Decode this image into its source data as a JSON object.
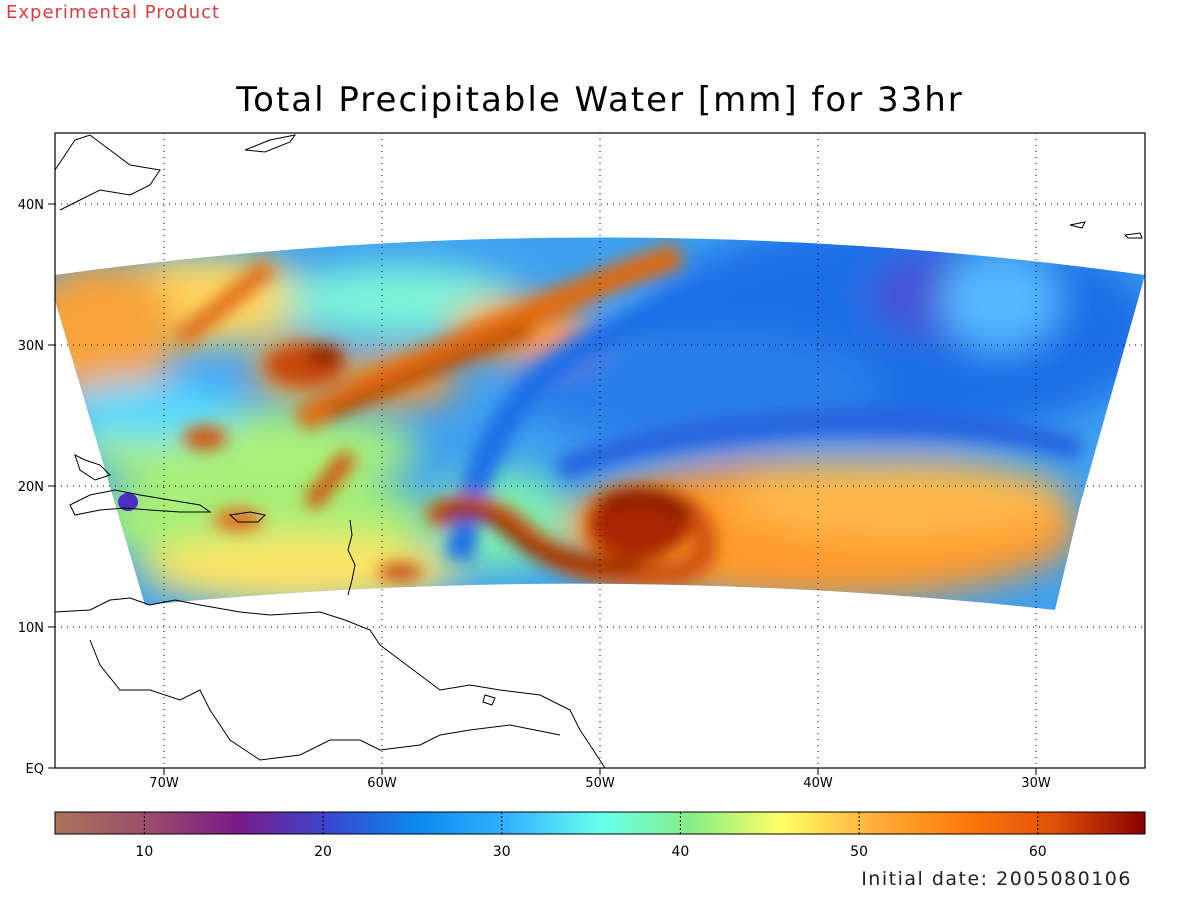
{
  "header": {
    "product_label": "Experimental Product",
    "title": "Total Precipitable Water [mm] for 33hr"
  },
  "footer": {
    "initial_date": "Initial date: 2005080106"
  },
  "map": {
    "lat_labels": [
      "40N",
      "30N",
      "20N",
      "10N",
      "EQ"
    ],
    "lon_labels": [
      "70W",
      "60W",
      "50W",
      "40W",
      "30W"
    ],
    "lat_values": [
      40,
      30,
      20,
      10,
      0
    ],
    "lon_values": [
      -70,
      -60,
      -50,
      -40,
      -30
    ],
    "lon_range": [
      -75,
      -25
    ],
    "lat_range": [
      0,
      45
    ],
    "grid": "dotted",
    "coastline_color": "#000000"
  },
  "colorbar": {
    "tick_labels": [
      "10",
      "20",
      "30",
      "40",
      "50",
      "60"
    ],
    "tick_values": [
      10,
      20,
      30,
      40,
      50,
      60
    ],
    "range": [
      5,
      66
    ],
    "stops": [
      "#a8745a",
      "#9a4e6a",
      "#7a1a86",
      "#3a46d0",
      "#0a8aee",
      "#33b4ff",
      "#66ffee",
      "#86ee86",
      "#ffff66",
      "#ffb03a",
      "#ff7a0a",
      "#e0500a",
      "#8a0000"
    ]
  }
}
